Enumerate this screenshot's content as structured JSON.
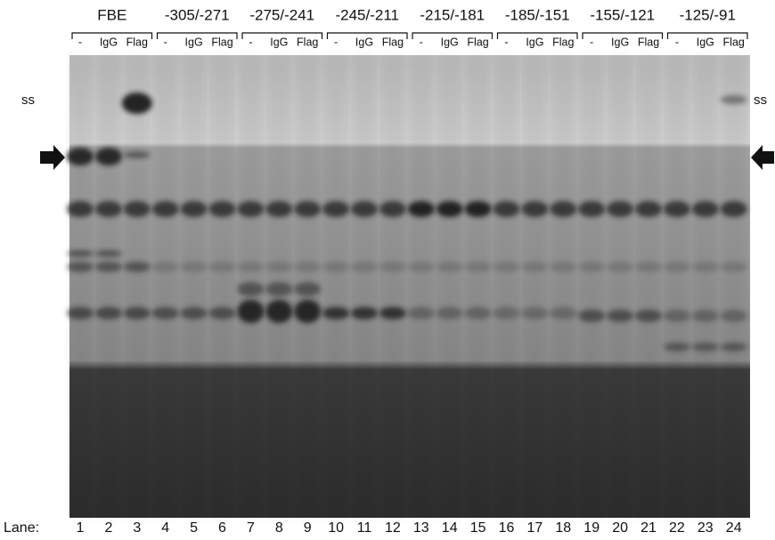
{
  "groups": [
    {
      "label": "FBE",
      "conditions": [
        "-",
        "IgG",
        "Flag"
      ]
    },
    {
      "label": "-305/-271",
      "conditions": [
        "-",
        "IgG",
        "Flag"
      ]
    },
    {
      "label": "-275/-241",
      "conditions": [
        "-",
        "IgG",
        "Flag"
      ]
    },
    {
      "label": "-245/-211",
      "conditions": [
        "-",
        "IgG",
        "Flag"
      ]
    },
    {
      "label": "-215/-181",
      "conditions": [
        "-",
        "IgG",
        "Flag"
      ]
    },
    {
      "label": "-185/-151",
      "conditions": [
        "-",
        "IgG",
        "Flag"
      ]
    },
    {
      "label": "-155/-121",
      "conditions": [
        "-",
        "IgG",
        "Flag"
      ]
    },
    {
      "label": "-125/-91",
      "conditions": [
        "-",
        "IgG",
        "Flag"
      ]
    }
  ],
  "ss_label_left": "ss",
  "ss_label_right": "ss",
  "lane_label": "Lane:",
  "lanes": [
    "1",
    "2",
    "3",
    "4",
    "5",
    "6",
    "7",
    "8",
    "9",
    "10",
    "11",
    "12",
    "13",
    "14",
    "15",
    "16",
    "17",
    "18",
    "19",
    "20",
    "21",
    "22",
    "23",
    "24"
  ]
}
